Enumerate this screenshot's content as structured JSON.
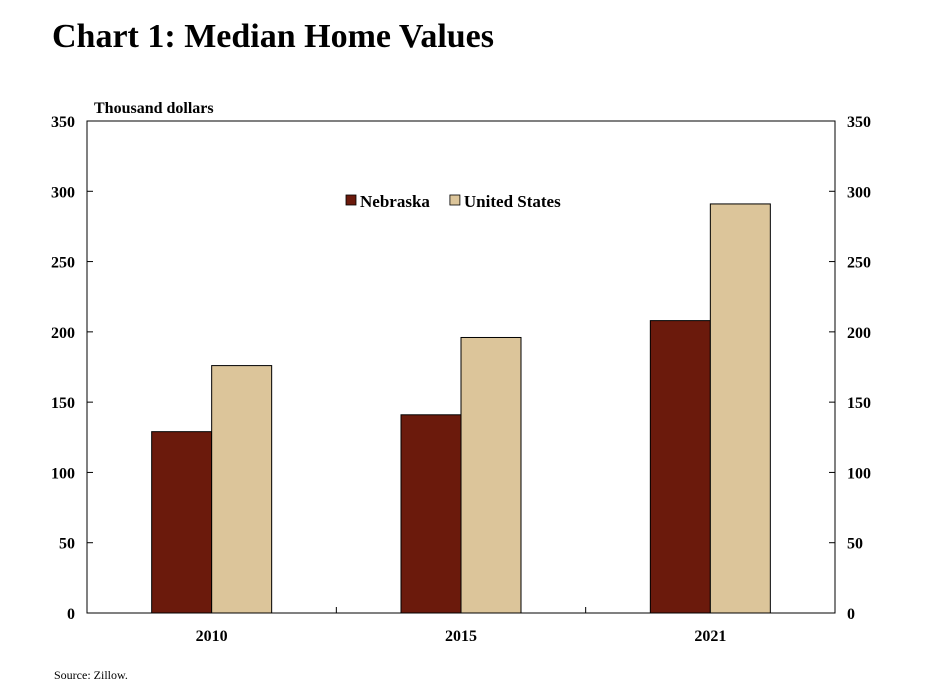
{
  "chart_data": {
    "type": "bar",
    "title": "Chart 1: Median Home Values",
    "unit_label": "Thousand dollars",
    "categories": [
      "2010",
      "2015",
      "2021"
    ],
    "series": [
      {
        "name": "Nebraska",
        "color": "#6b1a0c",
        "values": [
          129,
          141,
          208
        ]
      },
      {
        "name": "United States",
        "color": "#dcc59a",
        "values": [
          176,
          196,
          291
        ]
      }
    ],
    "ylim": [
      0,
      350
    ],
    "yticks": [
      0,
      50,
      100,
      150,
      200,
      250,
      300,
      350
    ],
    "ytick_labels": [
      "0",
      "50",
      "100",
      "150",
      "200",
      "250",
      "300",
      "350"
    ],
    "grid": false,
    "legend_position": "top-center",
    "source": "Source: Zillow."
  }
}
